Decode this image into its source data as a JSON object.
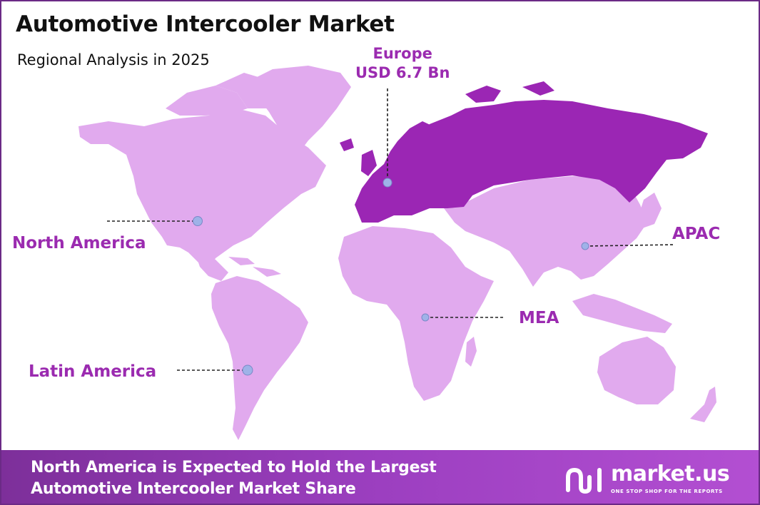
{
  "header": {
    "title": "Automotive Intercooler Market",
    "subtitle": "Regional Analysis in 2025"
  },
  "regions": [
    {
      "id": "north-america",
      "name": "North America",
      "value": "",
      "highlighted": false
    },
    {
      "id": "europe",
      "name": "Europe",
      "value": "USD 6.7 Bn",
      "highlighted": true
    },
    {
      "id": "apac",
      "name": "APAC",
      "value": "",
      "highlighted": false
    },
    {
      "id": "mea",
      "name": "MEA",
      "value": "",
      "highlighted": false
    },
    {
      "id": "latin-america",
      "name": "Latin America",
      "value": "",
      "highlighted": false
    }
  ],
  "colors": {
    "land": "#e1aaee",
    "highlight": "#9b26b4",
    "label": "#9b2bb0",
    "marker": "#9fb2e8",
    "border": "#6b2a86"
  },
  "footer": {
    "line1": "North America is Expected to Hold the Largest",
    "line2": "Automotive Intercooler Market Share"
  },
  "brand": {
    "name": "market.us",
    "tagline": "ONE STOP SHOP FOR THE REPORTS",
    "logo_icon": "market-us-logo-icon"
  }
}
